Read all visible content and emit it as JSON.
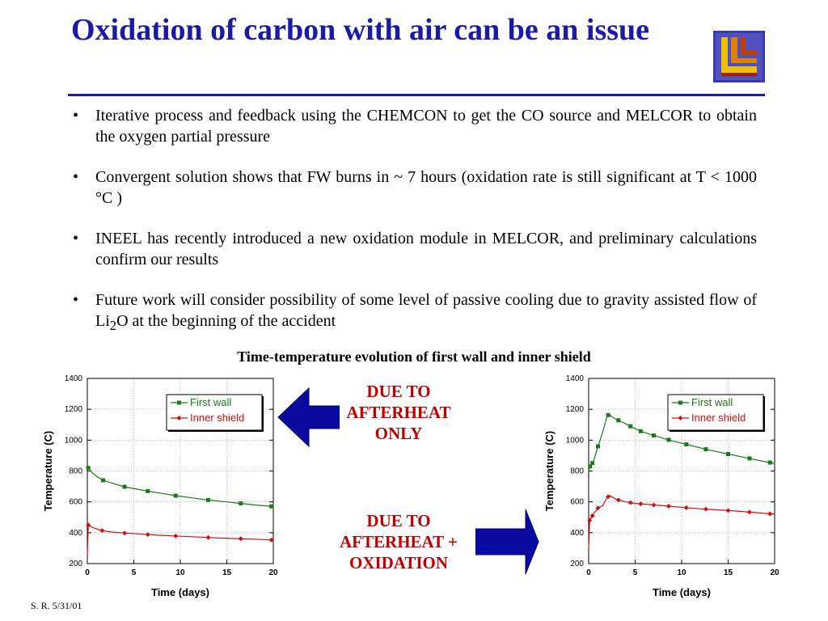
{
  "slide": {
    "title": "Oxidation of carbon with air can be an issue",
    "logo": {
      "icon": "llnl-logo"
    },
    "bullets": [
      {
        "text": "Iterative process and feedback using the CHEMCON to get the CO source and MELCOR  to obtain the oxygen partial pressure"
      },
      {
        "text": "Convergent solution shows that FW burns in ~ 7 hours (oxidation rate is still significant at T < 1000 °C )"
      },
      {
        "text": "INEEL has recently introduced a new oxidation module in MELCOR, and preliminary calculations confirm our results"
      },
      {
        "text_before": "Future work will consider possibility of some level of passive cooling due to gravity assisted flow of Li",
        "subscript": "2",
        "text_after": "O at the beginning of the accident"
      }
    ],
    "chart_heading": "Time-temperature evolution of first wall and inner shield",
    "callout_top": [
      "DUE TO",
      "AFTERHEAT",
      "ONLY"
    ],
    "callout_bottom": [
      "DUE TO",
      "AFTERHEAT +",
      "OXIDATION"
    ],
    "footer": "S. R. 5/31/01",
    "colors": {
      "title": "#1a1aa8",
      "arrow": "#0a0aa0",
      "first_wall": "#1b7a1b",
      "inner_shield": "#d01010",
      "callout_red": "#c00000"
    }
  },
  "chart_data": [
    {
      "type": "line",
      "xlabel": "Time (days)",
      "ylabel": "Temperature (C)",
      "xlim": [
        0,
        20
      ],
      "ylim": [
        200,
        1400
      ],
      "xticks": [
        "0",
        "5",
        "10",
        "15",
        "20"
      ],
      "yticks": [
        "200",
        "400",
        "600",
        "800",
        "1000",
        "1200",
        "1400"
      ],
      "grid": true,
      "legend": "top-right",
      "series": [
        {
          "name": "First wall",
          "color": "#1b7a1b",
          "marker": "square",
          "x": [
            0,
            0.1,
            0.5,
            1,
            1.7,
            3,
            4,
            6,
            8,
            9.5,
            11,
            13,
            15,
            16.5,
            18,
            20
          ],
          "y": [
            820,
            820,
            790,
            765,
            740,
            715,
            698,
            675,
            655,
            640,
            628,
            612,
            600,
            590,
            580,
            570
          ],
          "markers_x": [
            0.1,
            1.7,
            4,
            6.5,
            9.5,
            13,
            16.5,
            19.8
          ]
        },
        {
          "name": "Inner shield",
          "color": "#d01010",
          "marker": "diamond",
          "x": [
            0,
            0.1,
            0.4,
            0.8,
            1.5,
            2.5,
            4,
            6,
            8,
            10,
            12,
            14,
            16,
            18,
            20
          ],
          "y": [
            260,
            450,
            440,
            428,
            415,
            405,
            398,
            390,
            383,
            377,
            372,
            366,
            362,
            358,
            353
          ],
          "markers_x": [
            0.1,
            1.6,
            4,
            6.5,
            9.5,
            13,
            16.5,
            19.8
          ]
        }
      ]
    },
    {
      "type": "line",
      "xlabel": "Time (days)",
      "ylabel": "Temperature (C)",
      "xlim": [
        0,
        20
      ],
      "ylim": [
        200,
        1400
      ],
      "xticks": [
        "0",
        "5",
        "10",
        "15",
        "20"
      ],
      "yticks": [
        "200",
        "400",
        "600",
        "800",
        "1000",
        "1200",
        "1400"
      ],
      "grid": true,
      "legend": "top-right",
      "series": [
        {
          "name": "First wall",
          "color": "#1b7a1b",
          "marker": "square",
          "x": [
            0,
            0.15,
            0.5,
            1,
            1.5,
            2,
            2.2,
            2.8,
            3.5,
            4.5,
            5.5,
            7,
            9,
            11,
            13,
            15,
            17,
            19,
            20
          ],
          "y": [
            800,
            830,
            860,
            960,
            1050,
            1160,
            1165,
            1140,
            1120,
            1090,
            1060,
            1030,
            995,
            965,
            935,
            910,
            885,
            860,
            850
          ],
          "markers_x": [
            0.15,
            0.4,
            1,
            2.1,
            3.2,
            4.5,
            5.6,
            7,
            8.6,
            10.5,
            12.6,
            15,
            17.3,
            19.5
          ]
        },
        {
          "name": "Inner shield",
          "color": "#d01010",
          "marker": "diamond",
          "x": [
            0,
            0.1,
            0.5,
            1,
            1.5,
            2,
            2.3,
            3,
            4,
            5,
            6,
            8,
            10,
            12,
            14,
            16,
            18,
            20
          ],
          "y": [
            300,
            480,
            520,
            560,
            575,
            630,
            640,
            615,
            600,
            590,
            585,
            575,
            565,
            555,
            548,
            540,
            530,
            520
          ],
          "markers_x": [
            0.1,
            0.4,
            1,
            2.1,
            3.2,
            4.5,
            5.6,
            7,
            8.6,
            10.5,
            12.6,
            15,
            17.3,
            19.5
          ]
        }
      ]
    }
  ]
}
